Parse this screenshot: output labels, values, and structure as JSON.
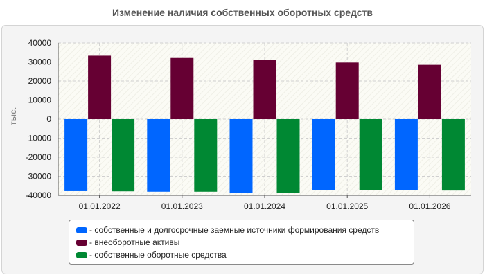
{
  "chart_data": {
    "type": "bar",
    "title": "Изменение наличия собственных оборотных средств",
    "ylabel": "тыс.",
    "xlabel": "",
    "categories": [
      "01.01.2022",
      "01.01.2023",
      "01.01.2024",
      "01.01.2025",
      "01.01.2026"
    ],
    "ylim": [
      -40000,
      40000
    ],
    "yticks": [
      40000,
      30000,
      20000,
      10000,
      0,
      -10000,
      -20000,
      -30000,
      -40000
    ],
    "series": [
      {
        "name": "- собственные и долгосрочные заемные источники формирования средств",
        "color": "#0066ff",
        "values": [
          -37800,
          -38100,
          -38800,
          -37300,
          -37400
        ]
      },
      {
        "name": "- внеоборотные активы",
        "color": "#660033",
        "values": [
          33300,
          32100,
          31000,
          29700,
          28500
        ]
      },
      {
        "name": "- собственные оборотные средства",
        "color": "#008833",
        "values": [
          -37900,
          -38100,
          -38700,
          -37300,
          -37500
        ]
      }
    ],
    "grid": true,
    "legend_position": "bottom"
  }
}
